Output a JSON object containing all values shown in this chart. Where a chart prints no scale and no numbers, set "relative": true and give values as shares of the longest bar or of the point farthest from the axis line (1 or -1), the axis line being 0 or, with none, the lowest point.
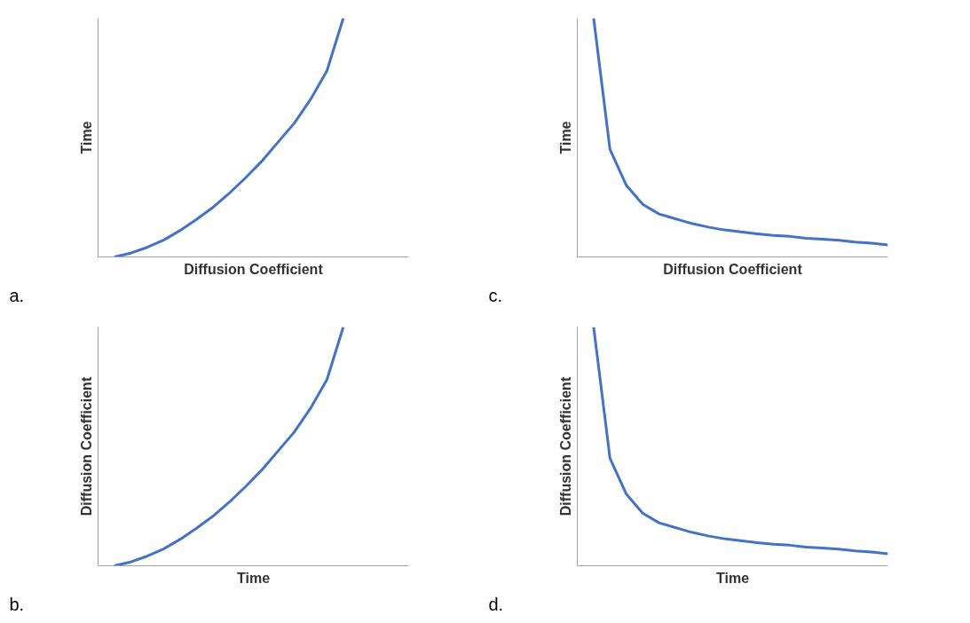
{
  "chart_data": [
    {
      "type": "line",
      "relative": true,
      "xlabel": "Diffusion Coefficient",
      "ylabel": "Time",
      "annotations": [
        "a."
      ],
      "color": "#4472c4",
      "categories": [
        null,
        null,
        null,
        null,
        null,
        null,
        null,
        null,
        null,
        null,
        null,
        null,
        null,
        null,
        null,
        null,
        null,
        null,
        null,
        null
      ],
      "values": [
        null,
        0.0,
        0.016,
        0.04,
        0.07,
        0.11,
        0.156,
        0.206,
        0.265,
        0.33,
        0.4,
        0.48,
        0.56,
        0.66,
        0.78,
        1.0,
        null,
        null,
        null,
        null
      ]
    },
    {
      "type": "line",
      "relative": true,
      "xlabel": "Diffusion Coefficient",
      "ylabel": "Time",
      "annotations": [
        "c."
      ],
      "color": "#4472c4",
      "categories": [
        null,
        null,
        null,
        null,
        null,
        null,
        null,
        null,
        null,
        null,
        null,
        null,
        null,
        null,
        null,
        null,
        null,
        null,
        null,
        null
      ],
      "values": [
        null,
        1.0,
        0.45,
        0.3,
        0.22,
        0.18,
        0.16,
        0.14,
        0.125,
        0.113,
        0.105,
        0.097,
        0.09,
        0.086,
        0.078,
        0.074,
        0.07,
        0.062,
        0.058,
        0.05
      ]
    },
    {
      "type": "line",
      "relative": true,
      "xlabel": "Time",
      "ylabel": "Diffusion Coefficient",
      "annotations": [
        "b."
      ],
      "color": "#4472c4",
      "categories": [
        null,
        null,
        null,
        null,
        null,
        null,
        null,
        null,
        null,
        null,
        null,
        null,
        null,
        null,
        null,
        null,
        null,
        null,
        null,
        null
      ],
      "values": [
        null,
        0.0,
        0.016,
        0.04,
        0.07,
        0.11,
        0.156,
        0.206,
        0.265,
        0.33,
        0.4,
        0.48,
        0.56,
        0.66,
        0.78,
        1.0,
        null,
        null,
        null,
        null
      ]
    },
    {
      "type": "line",
      "relative": true,
      "xlabel": "Time",
      "ylabel": "Diffusion Coefficient",
      "annotations": [
        "d."
      ],
      "color": "#4472c4",
      "categories": [
        null,
        null,
        null,
        null,
        null,
        null,
        null,
        null,
        null,
        null,
        null,
        null,
        null,
        null,
        null,
        null,
        null,
        null,
        null,
        null
      ],
      "values": [
        null,
        1.0,
        0.45,
        0.3,
        0.22,
        0.18,
        0.16,
        0.14,
        0.125,
        0.113,
        0.105,
        0.097,
        0.09,
        0.086,
        0.078,
        0.074,
        0.07,
        0.062,
        0.058,
        0.05
      ]
    }
  ]
}
